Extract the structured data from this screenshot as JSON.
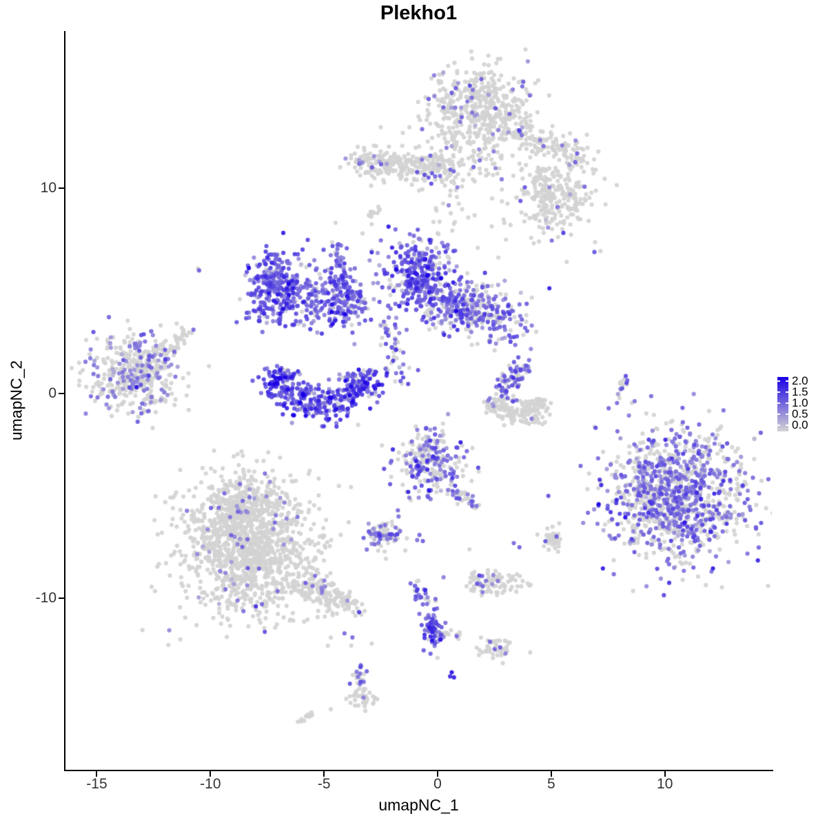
{
  "chart_data": {
    "type": "scatter",
    "title": "Plekho1",
    "xlabel": "umapNC_1",
    "ylabel": "umapNC_2",
    "xlim": [
      -16.38,
      14.71
    ],
    "ylim": [
      -18.39,
      17.68
    ],
    "xticks": [
      {
        "label": "-15",
        "value": -15
      },
      {
        "label": "-10",
        "value": -10
      },
      {
        "label": "-5",
        "value": -5
      },
      {
        "label": "0",
        "value": 0
      },
      {
        "label": "5",
        "value": 5
      },
      {
        "label": "10",
        "value": 10
      }
    ],
    "yticks": [
      {
        "label": "10",
        "value": 10
      },
      {
        "label": "0",
        "value": 0
      },
      {
        "label": "-10",
        "value": -10
      }
    ],
    "grid": false,
    "legend": {
      "position": "right",
      "breaks": [
        "2.0",
        "1.5",
        "1.0",
        "0.5",
        "0.0"
      ],
      "break_values": [
        2.0,
        1.5,
        1.0,
        0.5,
        0.0
      ]
    },
    "colors": {
      "expression_low": "#d3d3d3",
      "expression_high": "#1900e6",
      "axis": "#000000",
      "tick_label": "#333333"
    },
    "point_radius": 3.1,
    "seed": 1337,
    "clusters": [
      {
        "name": "top-blob",
        "shape": "gauss",
        "c": [
          1.76,
          13.88
        ],
        "sd": [
          1.15,
          1.0
        ],
        "n": 450,
        "pZero": 0.9,
        "tMean": 0.45,
        "tSd": 0.15
      },
      {
        "name": "top-arm",
        "shape": "chain",
        "from": [
          3.0,
          13.3
        ],
        "to": [
          6.4,
          11.3
        ],
        "jitter": [
          0.45,
          0.35
        ],
        "n": 150,
        "pZero": 0.93,
        "tMean": 0.45,
        "tSd": 0.12
      },
      {
        "name": "top-below",
        "shape": "gauss",
        "c": [
          1.4,
          11.6
        ],
        "sd": [
          1.0,
          0.8
        ],
        "n": 55,
        "pZero": 0.95,
        "tMean": 0.4,
        "tSd": 0.1
      },
      {
        "name": "band",
        "shape": "chain",
        "from": [
          -3.2,
          11.3
        ],
        "to": [
          0.8,
          10.9
        ],
        "jitter": [
          0.45,
          0.4
        ],
        "n": 280,
        "pZero": 0.94,
        "tMean": 0.45,
        "tSd": 0.12
      },
      {
        "name": "band-tail",
        "shape": "chain",
        "from": [
          -4.05,
          11.45
        ],
        "to": [
          -3.2,
          11.3
        ],
        "jitter": [
          0.15,
          0.15
        ],
        "n": 14,
        "pZero": 0.93,
        "tMean": 0.45,
        "tSd": 0.1
      },
      {
        "name": "mid-scatter",
        "shape": "gauss",
        "c": [
          0.8,
          8.8
        ],
        "sd": [
          2.4,
          1.3
        ],
        "n": 55,
        "pZero": 0.96,
        "tMean": 0.4,
        "tSd": 0.1
      },
      {
        "name": "upper-right-scatter",
        "shape": "gauss",
        "c": [
          5.0,
          11.1
        ],
        "sd": [
          1.2,
          0.85
        ],
        "n": 28,
        "pZero": 0.94,
        "tMean": 0.45,
        "tSd": 0.1
      },
      {
        "name": "right-blob",
        "shape": "gauss",
        "c": [
          5.2,
          9.4
        ],
        "sd": [
          0.85,
          0.75
        ],
        "n": 210,
        "pZero": 0.95,
        "tMean": 0.45,
        "tSd": 0.12
      },
      {
        "name": "right-blob-arm",
        "shape": "chain",
        "from": [
          4.4,
          10.6
        ],
        "to": [
          5.0,
          9.9
        ],
        "jitter": [
          0.2,
          0.2
        ],
        "n": 25,
        "pZero": 0.95,
        "tMean": 0.4,
        "tSd": 0.1
      },
      {
        "name": "tiny-streak",
        "shape": "chain",
        "from": [
          -3.1,
          8.5
        ],
        "to": [
          -2.5,
          9.1
        ],
        "jitter": [
          0.12,
          0.1
        ],
        "n": 12,
        "pZero": 0.9,
        "tMean": 0.5,
        "tSd": 0.1
      },
      {
        "name": "left-purple-crest",
        "shape": "gauss",
        "c": [
          -7.1,
          5.2
        ],
        "sd": [
          0.62,
          0.95
        ],
        "n": 290,
        "pZero": 0.1,
        "tMean": 0.55,
        "tSd": 0.18
      },
      {
        "name": "left-purple-east",
        "shape": "gauss",
        "c": [
          -4.5,
          4.7
        ],
        "sd": [
          0.92,
          0.75
        ],
        "n": 230,
        "pZero": 0.15,
        "tMean": 0.5,
        "tSd": 0.17
      },
      {
        "name": "v-chain",
        "shape": "chain",
        "from": [
          -4.45,
          7.3
        ],
        "to": [
          -3.95,
          4.4
        ],
        "jitter": [
          0.16,
          0.2
        ],
        "n": 48,
        "pZero": 0.12,
        "tMean": 0.55,
        "tSd": 0.15
      },
      {
        "name": "center-blob",
        "shape": "gauss",
        "c": [
          -0.9,
          5.75
        ],
        "sd": [
          0.78,
          0.92
        ],
        "n": 310,
        "pZero": 0.1,
        "tMean": 0.55,
        "tSd": 0.18
      },
      {
        "name": "center-arm",
        "shape": "gauss",
        "c": [
          1.7,
          4.1
        ],
        "sd": [
          1.18,
          0.68
        ],
        "n": 340,
        "rot": -15,
        "pZero": 0.38,
        "tMean": 0.5,
        "tSd": 0.15
      },
      {
        "name": "center-downchain",
        "shape": "chain",
        "from": [
          -2.3,
          3.4
        ],
        "to": [
          -1.6,
          0.4
        ],
        "jitter": [
          0.3,
          0.3
        ],
        "n": 45,
        "pZero": 0.3,
        "tMean": 0.5,
        "tSd": 0.15
      },
      {
        "name": "crescent",
        "shape": "arc",
        "c": [
          -5.05,
          0.9
        ],
        "rx": 1.85,
        "ry": 1.5,
        "a0": 165,
        "a1": 372,
        "thick": 0.45,
        "n": 400,
        "pZero": 0.07,
        "tMean": 0.62,
        "tSd": 0.2
      },
      {
        "name": "left-cluster",
        "shape": "gauss",
        "c": [
          -13.3,
          1.0
        ],
        "sd": [
          1.0,
          0.92
        ],
        "n": 430,
        "pZero": 0.72,
        "tMean": 0.42,
        "tSd": 0.13
      },
      {
        "name": "left-cluster-arm",
        "shape": "chain",
        "from": [
          -11.9,
          2.2
        ],
        "to": [
          -11.0,
          3.0
        ],
        "jitter": [
          0.22,
          0.2
        ],
        "n": 32,
        "pZero": 0.8,
        "tMean": 0.45,
        "tSd": 0.1
      },
      {
        "name": "rmid-arm",
        "shape": "chain",
        "from": [
          3.75,
          1.3
        ],
        "to": [
          2.85,
          0.0
        ],
        "jitter": [
          0.3,
          0.25
        ],
        "n": 75,
        "pZero": 0.45,
        "tMean": 0.5,
        "tSd": 0.13
      },
      {
        "name": "rmid-bowl",
        "shape": "arc",
        "c": [
          3.5,
          -0.2
        ],
        "rx": 1.15,
        "ry": 0.8,
        "a0": 185,
        "a1": 355,
        "thick": 0.3,
        "n": 170,
        "pZero": 0.97,
        "tMean": 0.4,
        "tSd": 0.1
      },
      {
        "name": "right-streak",
        "shape": "chain",
        "from": [
          8.28,
          0.9
        ],
        "to": [
          7.95,
          -0.3
        ],
        "jitter": [
          0.1,
          0.12
        ],
        "n": 16,
        "pZero": 0.6,
        "tMean": 0.5,
        "tSd": 0.12
      },
      {
        "name": "midbottom-blob",
        "shape": "gauss",
        "c": [
          -0.3,
          -3.5
        ],
        "sd": [
          0.75,
          0.88
        ],
        "n": 250,
        "pZero": 0.42,
        "tMean": 0.5,
        "tSd": 0.16
      },
      {
        "name": "midbottom-chain",
        "shape": "chain",
        "from": [
          0.6,
          -4.6
        ],
        "to": [
          1.7,
          -5.5
        ],
        "jitter": [
          0.2,
          0.15
        ],
        "n": 30,
        "pZero": 0.5,
        "tMean": 0.5,
        "tSd": 0.13
      },
      {
        "name": "bottomright-cluster",
        "shape": "gauss",
        "c": [
          10.4,
          -5.0
        ],
        "sd": [
          1.5,
          1.55
        ],
        "n": 1150,
        "rot": -25,
        "pZero": 0.53,
        "tMean": 0.47,
        "tSd": 0.15
      },
      {
        "name": "bottomleft-cluster",
        "shape": "gauss",
        "c": [
          -8.4,
          -7.4
        ],
        "sd": [
          1.5,
          1.6
        ],
        "n": 1250,
        "pZero": 0.965,
        "tMean": 0.4,
        "tSd": 0.12
      },
      {
        "name": "bottomleft-top",
        "shape": "gauss",
        "c": [
          -8.7,
          -5.4
        ],
        "sd": [
          0.9,
          0.6
        ],
        "n": 180,
        "pZero": 0.97,
        "tMean": 0.4,
        "tSd": 0.1
      },
      {
        "name": "bottomleft-arm",
        "shape": "chain",
        "from": [
          -6.0,
          -9.2
        ],
        "to": [
          -3.9,
          -10.5
        ],
        "jitter": [
          0.5,
          0.3
        ],
        "n": 170,
        "pZero": 0.97,
        "tMean": 0.4,
        "tSd": 0.1
      },
      {
        "name": "small-mid",
        "shape": "gauss",
        "c": [
          -2.35,
          -6.9
        ],
        "sd": [
          0.5,
          0.35
        ],
        "n": 75,
        "pZero": 0.55,
        "tMean": 0.5,
        "tSd": 0.13
      },
      {
        "name": "purple-pair-a",
        "shape": "points",
        "pts": [
          [
            -0.8,
            -6.9
          ],
          [
            -0.65,
            -7.2
          ],
          [
            -0.9,
            -7.15
          ]
        ],
        "t": [
          0.5,
          0.55,
          0.45
        ]
      },
      {
        "name": "grey-blob-right",
        "shape": "gauss",
        "c": [
          5.05,
          -7.1
        ],
        "sd": [
          0.32,
          0.28
        ],
        "n": 40,
        "pZero": 0.93,
        "tMean": 0.5,
        "tSd": 0.1
      },
      {
        "name": "purple-pair-b",
        "shape": "points",
        "pts": [
          [
            3.35,
            -7.3
          ],
          [
            3.6,
            -7.5
          ]
        ],
        "t": [
          0.5,
          0.55
        ]
      },
      {
        "name": "diag-chain",
        "shape": "chain",
        "from": [
          -0.85,
          -9.2
        ],
        "to": [
          -0.1,
          -11.7
        ],
        "jitter": [
          0.18,
          0.18
        ],
        "n": 55,
        "pZero": 0.35,
        "tMean": 0.55,
        "tSd": 0.15
      },
      {
        "name": "diag-end-blob",
        "shape": "gauss",
        "c": [
          -0.15,
          -11.8
        ],
        "sd": [
          0.25,
          0.3
        ],
        "n": 45,
        "pZero": 0.15,
        "tMean": 0.6,
        "tSd": 0.18
      },
      {
        "name": "diag-side",
        "shape": "chain",
        "from": [
          0.1,
          -11.6
        ],
        "to": [
          1.1,
          -11.9
        ],
        "jitter": [
          0.15,
          0.12
        ],
        "n": 16,
        "pZero": 0.9,
        "tMean": 0.4,
        "tSd": 0.1
      },
      {
        "name": "horiz-small",
        "shape": "gauss",
        "c": [
          2.5,
          -9.2
        ],
        "sd": [
          0.62,
          0.3
        ],
        "n": 95,
        "pZero": 0.87,
        "tMean": 0.5,
        "tSd": 0.12
      },
      {
        "name": "small-b",
        "shape": "gauss",
        "c": [
          2.5,
          -12.4
        ],
        "sd": [
          0.42,
          0.3
        ],
        "n": 45,
        "pZero": 0.88,
        "tMean": 0.5,
        "tSd": 0.12
      },
      {
        "name": "bottom-chain",
        "shape": "chain",
        "from": [
          -3.3,
          -13.3
        ],
        "to": [
          -3.5,
          -14.4
        ],
        "jitter": [
          0.15,
          0.1
        ],
        "n": 24,
        "pZero": 0.7,
        "tMean": 0.5,
        "tSd": 0.12
      },
      {
        "name": "bottom-blob",
        "shape": "gauss",
        "c": [
          -3.35,
          -14.9
        ],
        "sd": [
          0.38,
          0.26
        ],
        "n": 35,
        "pZero": 0.98,
        "tMean": 0.4,
        "tSd": 0.1
      },
      {
        "name": "dark-pair",
        "shape": "points",
        "pts": [
          [
            0.62,
            -13.6
          ],
          [
            0.72,
            -13.85
          ],
          [
            0.55,
            -13.8
          ]
        ],
        "t": [
          0.92,
          0.85,
          0.8
        ]
      },
      {
        "name": "grey-streak-bottom",
        "shape": "chain",
        "from": [
          -6.1,
          -16.0
        ],
        "to": [
          -5.55,
          -15.6
        ],
        "jitter": [
          0.1,
          0.08
        ],
        "n": 12,
        "pZero": 1.0,
        "tMean": 0.0,
        "tSd": 0.0
      },
      {
        "name": "isolated-dots",
        "shape": "points",
        "pts": [
          [
            6.9,
            6.9
          ],
          [
            -10.5,
            6.0
          ],
          [
            -10.55,
            6.1
          ],
          [
            -4.1,
            -11.7
          ],
          [
            -3.75,
            -11.9
          ],
          [
            -3.45,
            11.2
          ],
          [
            -1.75,
            -5.7
          ],
          [
            -1.72,
            -6.0
          ],
          [
            -4.7,
            -15.4
          ],
          [
            -3.8,
            -12.3
          ],
          [
            -2.9,
            -12.2
          ],
          [
            1.4,
            -7.6
          ]
        ],
        "t": [
          0.6,
          0.55,
          0,
          0.5,
          0.5,
          0.5,
          0.5,
          0.45,
          0,
          0,
          0,
          0
        ]
      }
    ]
  }
}
